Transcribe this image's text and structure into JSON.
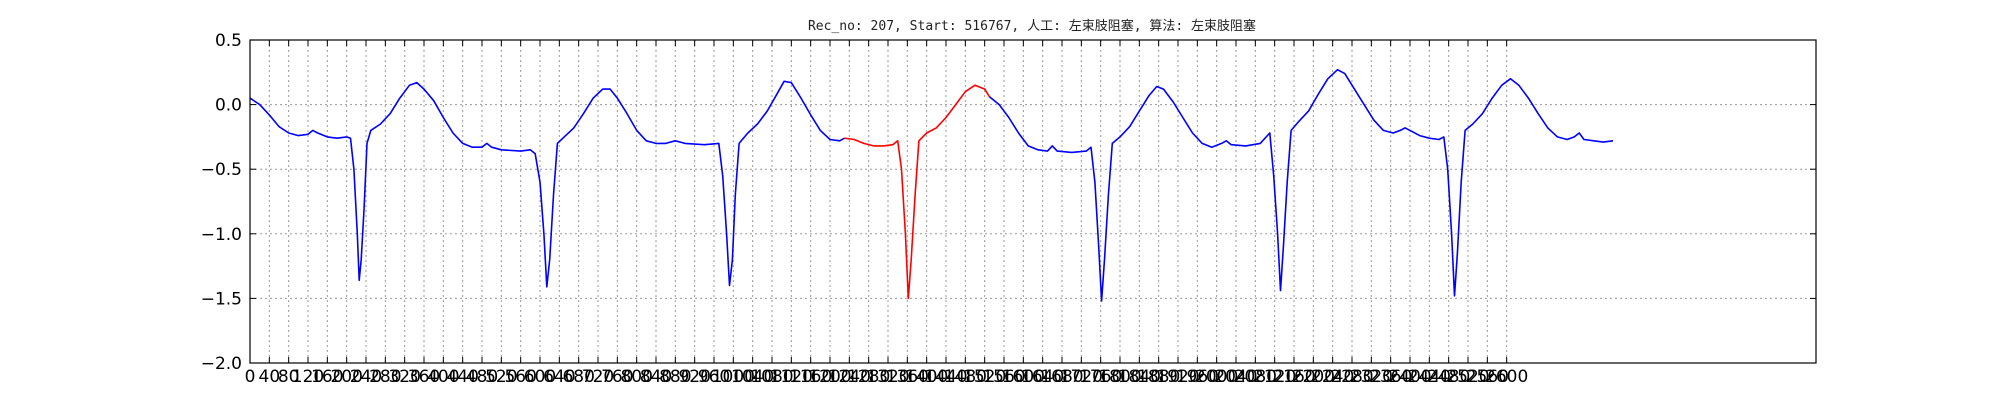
{
  "chart_data": {
    "type": "line",
    "title": "Rec_no: 207, Start: 516767, 人工: 左束肢阻塞, 算法: 左束肢阻塞",
    "xlabel": "",
    "ylabel": "",
    "xlim": [
      0,
      3240
    ],
    "ylim": [
      -2.0,
      0.5
    ],
    "x_ticks": [
      0,
      40,
      80,
      120,
      160,
      200,
      240,
      280,
      320,
      360,
      400,
      440,
      480,
      520,
      560,
      600,
      640,
      680,
      720,
      760,
      800,
      840,
      880,
      920,
      960,
      1000,
      1040,
      1080,
      1120,
      1160,
      1200,
      1240,
      1280,
      1320,
      1360,
      1400,
      1440,
      1480,
      1520,
      1560,
      1600,
      1640,
      1680,
      1720,
      1760,
      1800,
      1840,
      1880,
      1920,
      1960,
      2000,
      2040,
      2080,
      2120,
      2160,
      2200,
      2240,
      2280,
      2320,
      2360,
      2400,
      2440,
      2480,
      2520,
      2560,
      2600
    ],
    "y_ticks": [
      0.5,
      0.0,
      -0.5,
      -1.0,
      -1.5,
      -2.0
    ],
    "y_tick_labels": [
      "0.5",
      "0.0",
      "−0.5",
      "−1.0",
      "−1.5",
      "−2.0"
    ],
    "grid": true,
    "series": [
      {
        "color": "#0000ff",
        "points": [
          [
            0,
            0.05
          ],
          [
            20,
            0.0
          ],
          [
            40,
            -0.08
          ],
          [
            60,
            -0.17
          ],
          [
            80,
            -0.22
          ],
          [
            100,
            -0.24
          ],
          [
            120,
            -0.23
          ],
          [
            130,
            -0.2
          ],
          [
            140,
            -0.22
          ],
          [
            160,
            -0.25
          ],
          [
            180,
            -0.26
          ],
          [
            200,
            -0.25
          ],
          [
            208,
            -0.26
          ],
          [
            215,
            -0.5
          ],
          [
            222,
            -1.0
          ],
          [
            226,
            -1.36
          ],
          [
            230,
            -1.2
          ],
          [
            236,
            -0.8
          ],
          [
            242,
            -0.3
          ],
          [
            250,
            -0.2
          ],
          [
            270,
            -0.15
          ],
          [
            290,
            -0.07
          ],
          [
            310,
            0.05
          ],
          [
            330,
            0.15
          ],
          [
            345,
            0.17
          ],
          [
            360,
            0.12
          ],
          [
            380,
            0.03
          ],
          [
            400,
            -0.1
          ],
          [
            420,
            -0.22
          ],
          [
            440,
            -0.3
          ],
          [
            460,
            -0.33
          ],
          [
            480,
            -0.33
          ],
          [
            490,
            -0.3
          ],
          [
            500,
            -0.33
          ],
          [
            520,
            -0.35
          ],
          [
            560,
            -0.36
          ],
          [
            580,
            -0.35
          ],
          [
            590,
            -0.38
          ],
          [
            600,
            -0.6
          ],
          [
            608,
            -1.0
          ],
          [
            614,
            -1.41
          ],
          [
            620,
            -1.2
          ],
          [
            628,
            -0.7
          ],
          [
            636,
            -0.3
          ],
          [
            650,
            -0.25
          ],
          [
            670,
            -0.18
          ],
          [
            690,
            -0.07
          ],
          [
            710,
            0.05
          ],
          [
            730,
            0.12
          ],
          [
            745,
            0.12
          ],
          [
            760,
            0.05
          ],
          [
            780,
            -0.07
          ],
          [
            800,
            -0.2
          ],
          [
            820,
            -0.28
          ],
          [
            840,
            -0.3
          ],
          [
            860,
            -0.3
          ],
          [
            880,
            -0.28
          ],
          [
            900,
            -0.3
          ],
          [
            940,
            -0.31
          ],
          [
            970,
            -0.3
          ],
          [
            978,
            -0.55
          ],
          [
            986,
            -1.0
          ],
          [
            992,
            -1.4
          ],
          [
            998,
            -1.2
          ],
          [
            1004,
            -0.7
          ],
          [
            1012,
            -0.3
          ],
          [
            1030,
            -0.22
          ],
          [
            1050,
            -0.15
          ],
          [
            1070,
            -0.05
          ],
          [
            1090,
            0.08
          ],
          [
            1105,
            0.18
          ],
          [
            1120,
            0.17
          ],
          [
            1140,
            0.05
          ],
          [
            1160,
            -0.08
          ],
          [
            1180,
            -0.2
          ],
          [
            1200,
            -0.27
          ],
          [
            1220,
            -0.28
          ],
          [
            1230,
            -0.26
          ]
        ]
      },
      {
        "color": "#ff0000",
        "points": [
          [
            1230,
            -0.26
          ],
          [
            1250,
            -0.27
          ],
          [
            1270,
            -0.3
          ],
          [
            1290,
            -0.32
          ],
          [
            1310,
            -0.32
          ],
          [
            1330,
            -0.31
          ],
          [
            1340,
            -0.28
          ],
          [
            1348,
            -0.5
          ],
          [
            1356,
            -1.0
          ],
          [
            1362,
            -1.5
          ],
          [
            1368,
            -1.2
          ],
          [
            1376,
            -0.7
          ],
          [
            1384,
            -0.28
          ],
          [
            1400,
            -0.22
          ],
          [
            1420,
            -0.18
          ],
          [
            1440,
            -0.1
          ],
          [
            1460,
            0.0
          ],
          [
            1480,
            0.1
          ],
          [
            1500,
            0.15
          ],
          [
            1520,
            0.12
          ],
          [
            1530,
            0.06
          ]
        ]
      },
      {
        "color": "#0000ff",
        "points": [
          [
            1530,
            0.06
          ],
          [
            1550,
            0.0
          ],
          [
            1570,
            -0.1
          ],
          [
            1590,
            -0.22
          ],
          [
            1610,
            -0.32
          ],
          [
            1630,
            -0.35
          ],
          [
            1650,
            -0.36
          ],
          [
            1660,
            -0.32
          ],
          [
            1670,
            -0.36
          ],
          [
            1700,
            -0.37
          ],
          [
            1730,
            -0.36
          ],
          [
            1740,
            -0.33
          ],
          [
            1748,
            -0.6
          ],
          [
            1756,
            -1.1
          ],
          [
            1762,
            -1.52
          ],
          [
            1768,
            -1.2
          ],
          [
            1776,
            -0.7
          ],
          [
            1784,
            -0.3
          ],
          [
            1800,
            -0.25
          ],
          [
            1820,
            -0.17
          ],
          [
            1840,
            -0.05
          ],
          [
            1860,
            0.07
          ],
          [
            1876,
            0.14
          ],
          [
            1890,
            0.12
          ],
          [
            1910,
            0.02
          ],
          [
            1930,
            -0.1
          ],
          [
            1950,
            -0.22
          ],
          [
            1970,
            -0.3
          ],
          [
            1990,
            -0.33
          ],
          [
            2010,
            -0.3
          ],
          [
            2020,
            -0.28
          ],
          [
            2030,
            -0.31
          ],
          [
            2060,
            -0.32
          ],
          [
            2090,
            -0.3
          ],
          [
            2110,
            -0.22
          ],
          [
            2118,
            -0.55
          ],
          [
            2126,
            -1.0
          ],
          [
            2132,
            -1.44
          ],
          [
            2138,
            -1.1
          ],
          [
            2146,
            -0.6
          ],
          [
            2154,
            -0.2
          ],
          [
            2170,
            -0.13
          ],
          [
            2190,
            -0.05
          ],
          [
            2210,
            0.08
          ],
          [
            2230,
            0.2
          ],
          [
            2250,
            0.27
          ],
          [
            2265,
            0.24
          ],
          [
            2285,
            0.12
          ],
          [
            2305,
            0.0
          ],
          [
            2325,
            -0.12
          ],
          [
            2345,
            -0.2
          ],
          [
            2365,
            -0.22
          ],
          [
            2380,
            -0.2
          ],
          [
            2390,
            -0.18
          ],
          [
            2400,
            -0.2
          ],
          [
            2420,
            -0.24
          ],
          [
            2440,
            -0.26
          ],
          [
            2460,
            -0.27
          ],
          [
            2470,
            -0.25
          ],
          [
            2478,
            -0.5
          ],
          [
            2486,
            -1.0
          ],
          [
            2492,
            -1.48
          ],
          [
            2498,
            -1.15
          ],
          [
            2506,
            -0.6
          ],
          [
            2514,
            -0.2
          ],
          [
            2530,
            -0.15
          ],
          [
            2550,
            -0.07
          ],
          [
            2570,
            0.05
          ],
          [
            2590,
            0.15
          ],
          [
            2608,
            0.2
          ],
          [
            2625,
            0.15
          ],
          [
            2645,
            0.05
          ],
          [
            2665,
            -0.07
          ],
          [
            2685,
            -0.18
          ],
          [
            2705,
            -0.25
          ],
          [
            2725,
            -0.27
          ],
          [
            2740,
            -0.25
          ],
          [
            2750,
            -0.22
          ],
          [
            2760,
            -0.27
          ],
          [
            2780,
            -0.28
          ],
          [
            2800,
            -0.29
          ],
          [
            2820,
            -0.28
          ]
        ]
      }
    ]
  }
}
